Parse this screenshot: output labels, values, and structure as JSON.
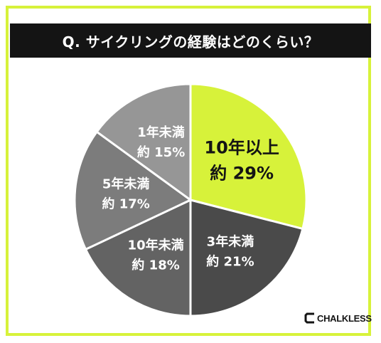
{
  "title": "Q. サイクリングの経験はどのくらい？",
  "chart_data": {
    "type": "pie",
    "start_angle_deg": 0,
    "direction": "clockwise",
    "slices": [
      {
        "label": "10年以上",
        "value_label": "約 29%",
        "value": 29,
        "color": "#d7f23a",
        "text_color": "#141414"
      },
      {
        "label": "3年未満",
        "value_label": "約 21%",
        "value": 21,
        "color": "#4a4a4a",
        "text_color": "#ffffff"
      },
      {
        "label": "10年未満",
        "value_label": "約 18%",
        "value": 18,
        "color": "#636363",
        "text_color": "#ffffff"
      },
      {
        "label": "5年未満",
        "value_label": "約 17%",
        "value": 17,
        "color": "#7c7c7c",
        "text_color": "#ffffff"
      },
      {
        "label": "1年未満",
        "value_label": "約 15%",
        "value": 15,
        "color": "#969696",
        "text_color": "#ffffff"
      }
    ]
  },
  "brand": {
    "name": "CHALKLESS",
    "accent": "#d7f23a",
    "dark": "#141414"
  }
}
